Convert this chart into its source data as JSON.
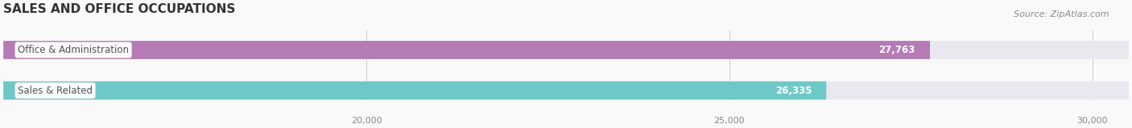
{
  "title": "SALES AND OFFICE OCCUPATIONS",
  "source": "Source: ZipAtlas.com",
  "categories": [
    "Office & Administration",
    "Sales & Related"
  ],
  "values": [
    27763,
    26335
  ],
  "bar_colors": [
    "#b57bb5",
    "#6ec8c8"
  ],
  "track_color": "#e8e8ee",
  "xlim": [
    15000,
    30500
  ],
  "xticks": [
    20000,
    25000,
    30000
  ],
  "xtick_labels": [
    "20,000",
    "25,000",
    "30,000"
  ],
  "bar_height": 0.45,
  "title_fontsize": 11,
  "label_fontsize": 8.5,
  "value_fontsize": 8.5,
  "tick_fontsize": 8,
  "source_fontsize": 8,
  "background_color": "#f9f9f9",
  "title_color": "#333333",
  "label_color": "#555555",
  "value_color": "#ffffff",
  "tick_color": "#888888",
  "source_color": "#888888"
}
